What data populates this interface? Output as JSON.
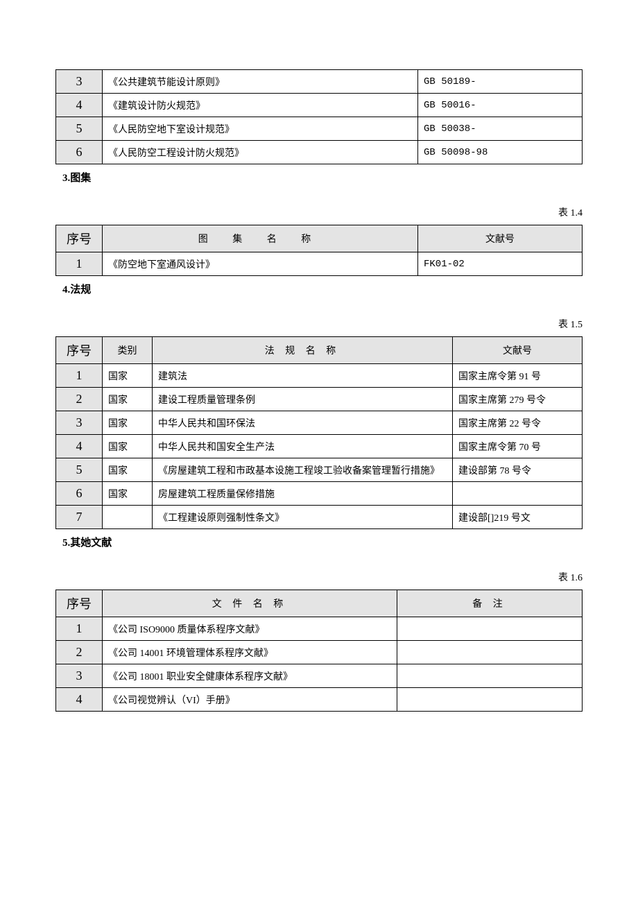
{
  "table1": {
    "rows": [
      {
        "n": "3",
        "name": "《公共建筑节能设计原则》",
        "code": "GB 50189-"
      },
      {
        "n": "4",
        "name": "《建筑设计防火规范》",
        "code": "GB 50016-"
      },
      {
        "n": "5",
        "name": "《人民防空地下室设计规范》",
        "code": "GB 50038-"
      },
      {
        "n": "6",
        "name": "《人民防空工程设计防火规范》",
        "code": "GB 50098-98"
      }
    ]
  },
  "sec3": {
    "title": "3.图集",
    "caption": "表 1.4"
  },
  "table2": {
    "h1": "序号",
    "h2": "图   集   名   称",
    "h3": "文献号",
    "rows": [
      {
        "n": "1",
        "name": "《防空地下室通风设计》",
        "code": "FK01-02"
      }
    ]
  },
  "sec4": {
    "title": "4.法规",
    "caption": "表 1.5"
  },
  "table3": {
    "h1": "序号",
    "h2": "类别",
    "h3": "法 规 名 称",
    "h4": "文献号",
    "rows": [
      {
        "n": "1",
        "type": "国家",
        "name": "建筑法",
        "ref": "国家主席令第 91 号"
      },
      {
        "n": "2",
        "type": "国家",
        "name": "建设工程质量管理条例",
        "ref": "国家主席第 279 号令"
      },
      {
        "n": "3",
        "type": "国家",
        "name": "中华人民共和国环保法",
        "ref": "国家主席第 22 号令"
      },
      {
        "n": "4",
        "type": "国家",
        "name": "中华人民共和国安全生产法",
        "ref": "国家主席令第 70 号"
      },
      {
        "n": "5",
        "type": "国家",
        "name": "《房屋建筑工程和市政基本设施工程竣工验收备案管理暂行措施》",
        "ref": "建设部第 78 号令"
      },
      {
        "n": "6",
        "type": "国家",
        "name": "房屋建筑工程质量保修措施",
        "ref": ""
      },
      {
        "n": "7",
        "type": "",
        "name": "《工程建设原则强制性条文》",
        "ref": "建设部[]219 号文"
      }
    ]
  },
  "sec5": {
    "title": "5.其她文献",
    "caption": "表 1.6"
  },
  "table4": {
    "h1": "序号",
    "h2": "文 件 名 称",
    "h3": "备 注",
    "rows": [
      {
        "n": "1",
        "name": "《公司 ISO9000 质量体系程序文献》",
        "note": ""
      },
      {
        "n": "2",
        "name": "《公司 14001 环境管理体系程序文献》",
        "note": ""
      },
      {
        "n": "3",
        "name": "《公司 18001 职业安全健康体系程序文献》",
        "note": ""
      },
      {
        "n": "4",
        "name": "《公司视觉辨认（VI）手册》",
        "note": ""
      }
    ]
  }
}
